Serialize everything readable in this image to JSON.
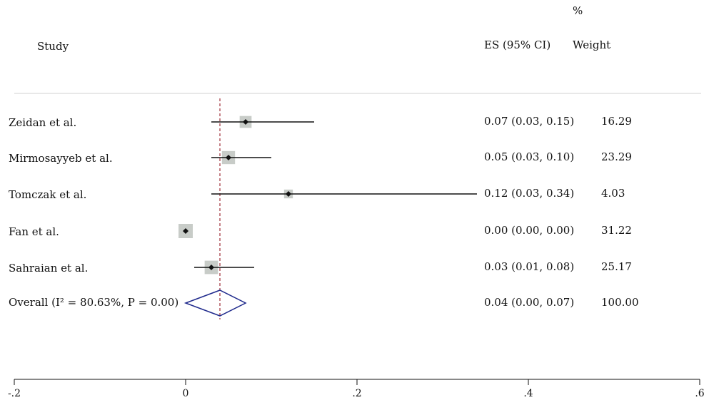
{
  "header": {
    "study": "Study",
    "es": "ES (95% CI)",
    "pct": "%",
    "weight": "Weight"
  },
  "chart_data": {
    "type": "forest",
    "xlim": [
      -0.2,
      0.6
    ],
    "xticks": [
      -0.2,
      0,
      0.2,
      0.4,
      0.6
    ],
    "xtick_labels": [
      "-.2",
      "0",
      ".2",
      ".4",
      ".6"
    ],
    "reference_line": 0.04,
    "studies": [
      {
        "label": "Zeidan et al.",
        "es": 0.07,
        "lo": 0.03,
        "hi": 0.15,
        "es_text": "0.07 (0.03, 0.15)",
        "weight": "16.29"
      },
      {
        "label": "Mirmosayyeb et al.",
        "es": 0.05,
        "lo": 0.03,
        "hi": 0.1,
        "es_text": "0.05 (0.03, 0.10)",
        "weight": "23.29"
      },
      {
        "label": "Tomczak et al.",
        "es": 0.12,
        "lo": 0.03,
        "hi": 0.34,
        "es_text": "0.12 (0.03, 0.34)",
        "weight": "4.03"
      },
      {
        "label": "Fan et al.",
        "es": 0.0,
        "lo": 0.0,
        "hi": 0.0,
        "es_text": "0.00 (0.00, 0.00)",
        "weight": "31.22"
      },
      {
        "label": "Sahraian et al.",
        "es": 0.03,
        "lo": 0.01,
        "hi": 0.08,
        "es_text": "0.03 (0.01, 0.08)",
        "weight": "25.17"
      }
    ],
    "overall": {
      "label": "Overall (I² = 80.63%, P = 0.00)",
      "es": 0.04,
      "lo": 0.0,
      "hi": 0.07,
      "es_text": "0.04 (0.00, 0.07)",
      "weight": "100.00"
    },
    "colors": {
      "box": "#c8ccc8",
      "ci": "#111111",
      "diamond": "#1f2a8c",
      "refline": "#a0303a",
      "divider": "#d0d0d0"
    }
  }
}
